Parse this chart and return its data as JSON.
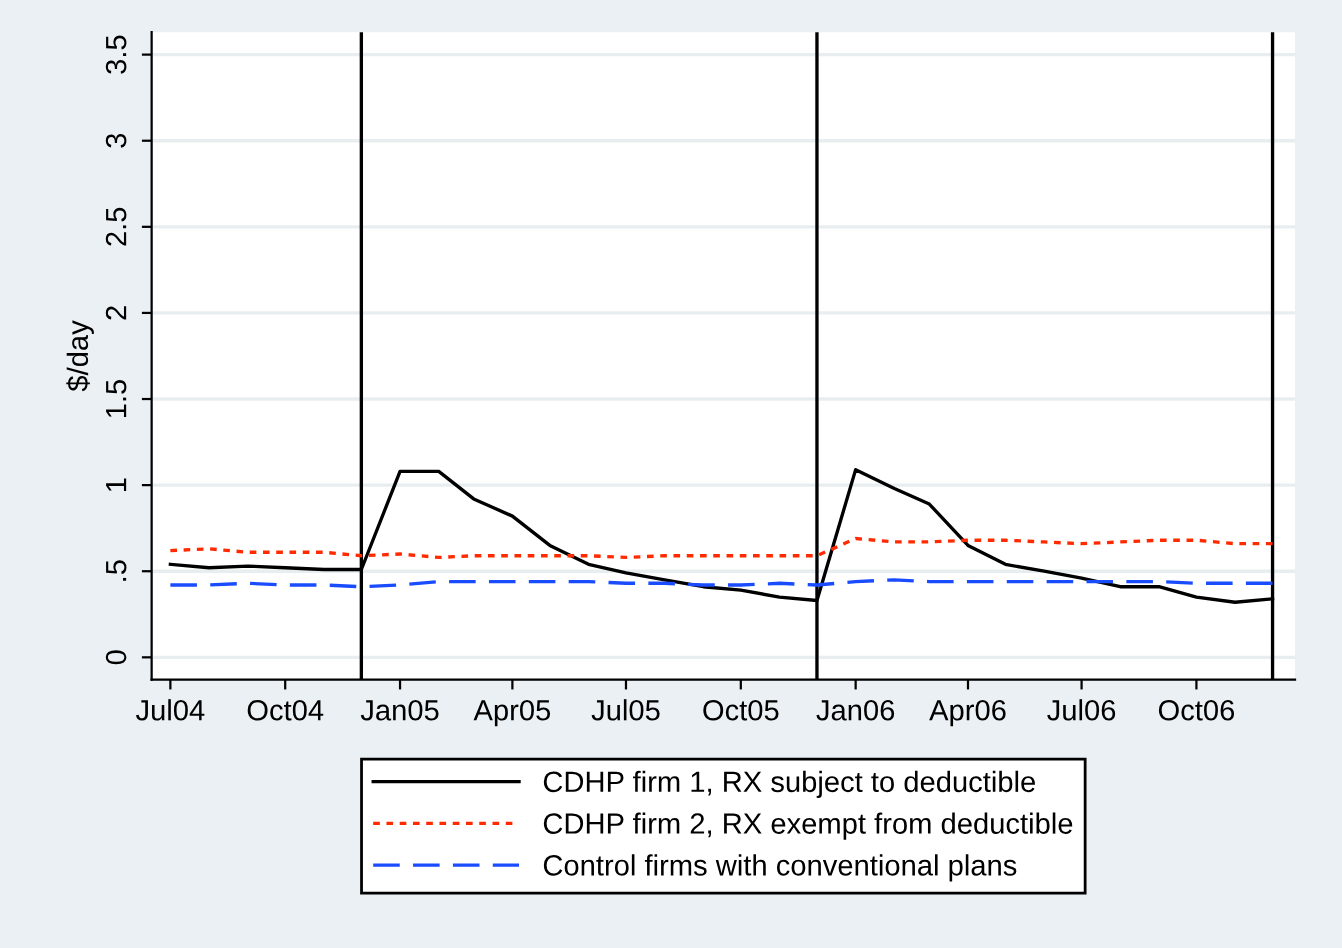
{
  "chart_data": {
    "type": "line",
    "ylabel": "$/day",
    "x": [
      "2004-07",
      "2004-08",
      "2004-09",
      "2004-10",
      "2004-11",
      "2004-12",
      "2005-01",
      "2005-02",
      "2005-03",
      "2005-04",
      "2005-05",
      "2005-06",
      "2005-07",
      "2005-08",
      "2005-09",
      "2005-10",
      "2005-11",
      "2005-12",
      "2006-01",
      "2006-02",
      "2006-03",
      "2006-04",
      "2006-05",
      "2006-06",
      "2006-07",
      "2006-08",
      "2006-09",
      "2006-10",
      "2006-11",
      "2006-12"
    ],
    "series": [
      {
        "name": "CDHP firm 1, RX subject to deductible",
        "color": "#000000",
        "line_style": "solid",
        "values": [
          0.54,
          0.52,
          0.53,
          0.52,
          0.51,
          0.51,
          1.08,
          1.08,
          0.92,
          0.82,
          0.65,
          0.54,
          0.49,
          0.45,
          0.41,
          0.39,
          0.35,
          0.33,
          1.09,
          0.98,
          0.89,
          0.65,
          0.54,
          0.5,
          0.46,
          0.41,
          0.41,
          0.35,
          0.32,
          0.34
        ]
      },
      {
        "name": "CDHP firm 2, RX exempt from deductible",
        "color": "#ff2a00",
        "line_style": "dotted",
        "values": [
          0.62,
          0.63,
          0.61,
          0.61,
          0.61,
          0.59,
          0.6,
          0.58,
          0.59,
          0.59,
          0.59,
          0.59,
          0.58,
          0.59,
          0.59,
          0.59,
          0.59,
          0.59,
          0.69,
          0.67,
          0.67,
          0.68,
          0.68,
          0.67,
          0.66,
          0.67,
          0.68,
          0.68,
          0.66,
          0.66
        ]
      },
      {
        "name": "Control firms with conventional plans",
        "color": "#1a4cff",
        "line_style": "dashed",
        "values": [
          0.42,
          0.42,
          0.43,
          0.42,
          0.42,
          0.41,
          0.42,
          0.44,
          0.44,
          0.44,
          0.44,
          0.44,
          0.43,
          0.43,
          0.42,
          0.42,
          0.43,
          0.42,
          0.44,
          0.45,
          0.44,
          0.44,
          0.44,
          0.44,
          0.44,
          0.44,
          0.44,
          0.43,
          0.43,
          0.43
        ]
      }
    ],
    "xlim": [
      "2004-06-16",
      "2006-12-19"
    ],
    "xticks": [
      {
        "value": "2004-07",
        "label": "Jul04"
      },
      {
        "value": "2004-10",
        "label": "Oct04"
      },
      {
        "value": "2005-01",
        "label": "Jan05"
      },
      {
        "value": "2005-04",
        "label": "Apr05"
      },
      {
        "value": "2005-07",
        "label": "Jul05"
      },
      {
        "value": "2005-10",
        "label": "Oct05"
      },
      {
        "value": "2006-01",
        "label": "Jan06"
      },
      {
        "value": "2006-04",
        "label": "Apr06"
      },
      {
        "value": "2006-07",
        "label": "Jul06"
      },
      {
        "value": "2006-10",
        "label": "Oct06"
      }
    ],
    "ylim": [
      -0.13,
      3.63
    ],
    "yticks": [
      0,
      {
        "value": 0.5,
        "label": ".5"
      },
      1,
      1.5,
      2,
      2.5,
      3,
      3.5
    ],
    "ref_lines": [
      {
        "axis": "x",
        "value": "2004-12",
        "color": "#000000"
      },
      {
        "axis": "x",
        "value": "2005-12",
        "color": "#000000"
      },
      {
        "axis": "x",
        "value": "2006-12",
        "color": "#000000"
      }
    ],
    "grid": "y",
    "legend": "bottom",
    "marker": "none"
  }
}
